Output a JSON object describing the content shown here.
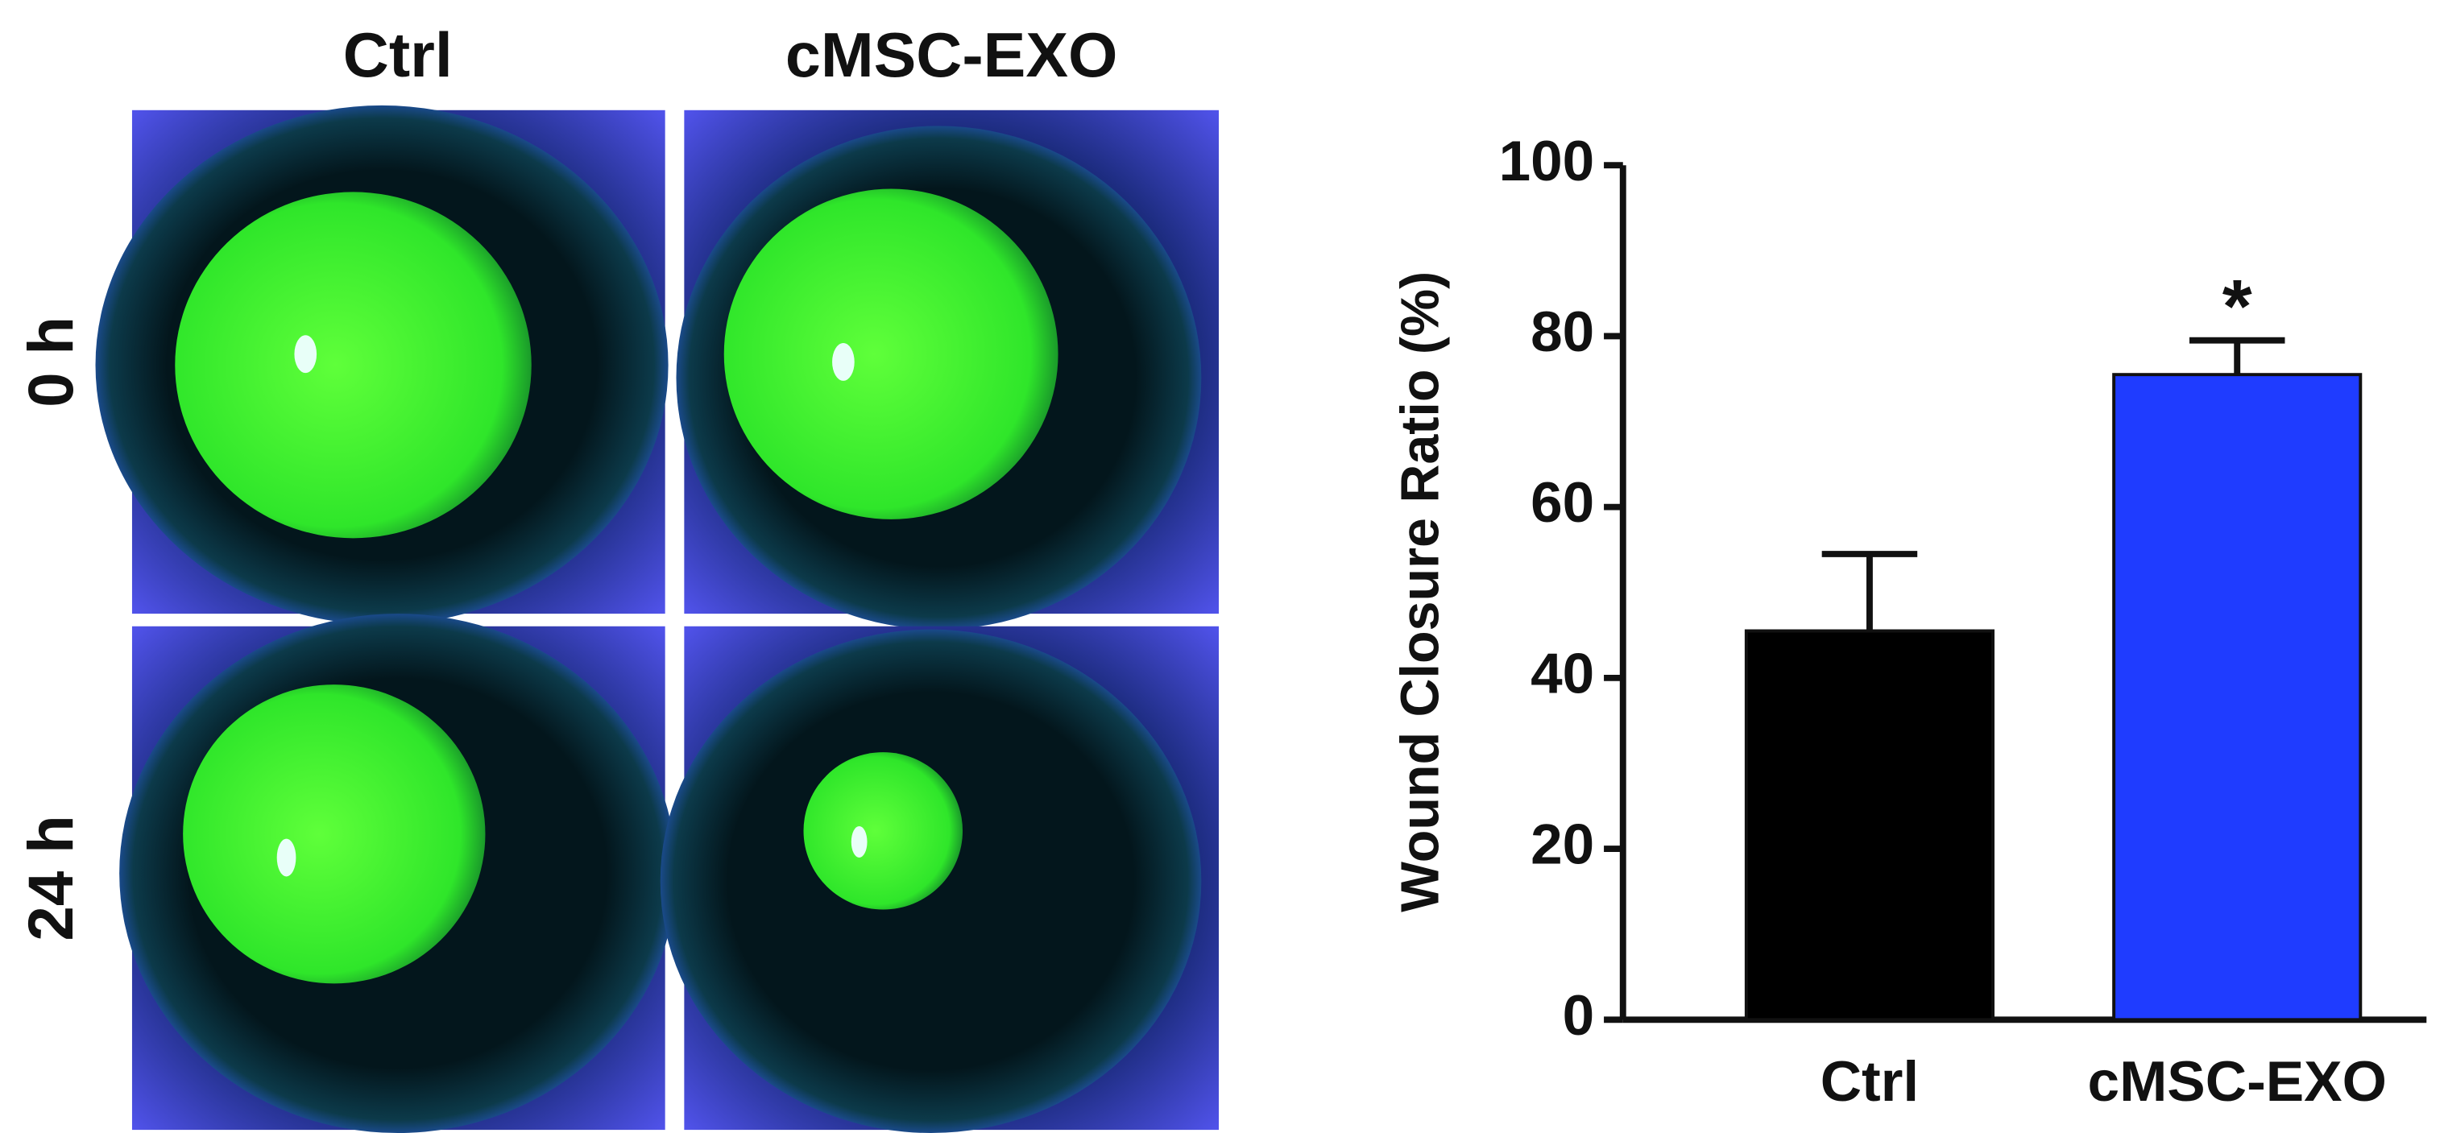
{
  "image_panel": {
    "columns": [
      "Ctrl",
      "cMSC-EXO"
    ],
    "rows": [
      "0 h",
      "24 h"
    ]
  },
  "chart_data": {
    "type": "bar",
    "y_label": "Wound Closure Ratio (%)",
    "categories": [
      "Ctrl",
      "cMSC-EXO"
    ],
    "values": [
      45.5,
      75.5
    ],
    "errors": [
      9,
      4
    ],
    "colors": [
      "#000000",
      "#1f3cff"
    ],
    "ylim": [
      0,
      100
    ],
    "yticks": [
      0,
      20,
      40,
      60,
      80,
      100
    ],
    "annotations": [
      {
        "category": "cMSC-EXO",
        "text": "*"
      }
    ]
  }
}
